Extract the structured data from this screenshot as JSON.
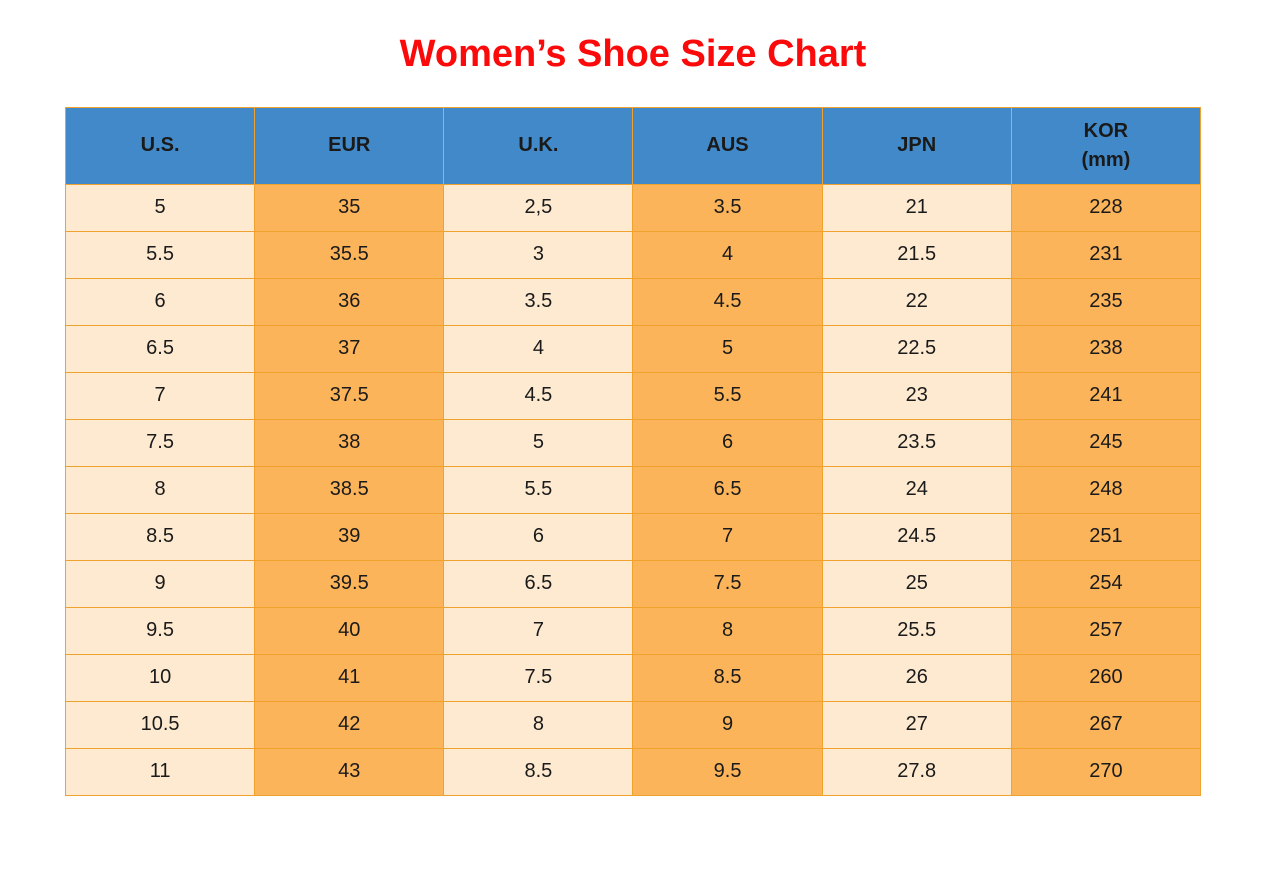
{
  "title": "Women’s Shoe Size Chart",
  "colors": {
    "title": "#fa0a0a",
    "header_bg": "#4189c8",
    "cell_light": "#fdead0",
    "cell_orange": "#fbb459",
    "border": "#efa22d",
    "text": "#1a1a1a"
  },
  "table": {
    "headers": [
      "U.S.",
      "EUR",
      "U.K.",
      "AUS",
      "JPN",
      "KOR\n(mm)"
    ],
    "column_styles": [
      "light",
      "orange",
      "light",
      "orange",
      "light",
      "orange"
    ],
    "rows": [
      [
        "5",
        "35",
        "2,5",
        "3.5",
        "21",
        "228"
      ],
      [
        "5.5",
        "35.5",
        "3",
        "4",
        "21.5",
        "231"
      ],
      [
        "6",
        "36",
        "3.5",
        "4.5",
        "22",
        "235"
      ],
      [
        "6.5",
        "37",
        "4",
        "5",
        "22.5",
        "238"
      ],
      [
        "7",
        "37.5",
        "4.5",
        "5.5",
        "23",
        "241"
      ],
      [
        "7.5",
        "38",
        "5",
        "6",
        "23.5",
        "245"
      ],
      [
        "8",
        "38.5",
        "5.5",
        "6.5",
        "24",
        "248"
      ],
      [
        "8.5",
        "39",
        "6",
        "7",
        "24.5",
        "251"
      ],
      [
        "9",
        "39.5",
        "6.5",
        "7.5",
        "25",
        "254"
      ],
      [
        "9.5",
        "40",
        "7",
        "8",
        "25.5",
        "257"
      ],
      [
        "10",
        "41",
        "7.5",
        "8.5",
        "26",
        "260"
      ],
      [
        "10.5",
        "42",
        "8",
        "9",
        "27",
        "267"
      ],
      [
        "11",
        "43",
        "8.5",
        "9.5",
        "27.8",
        "270"
      ]
    ]
  }
}
